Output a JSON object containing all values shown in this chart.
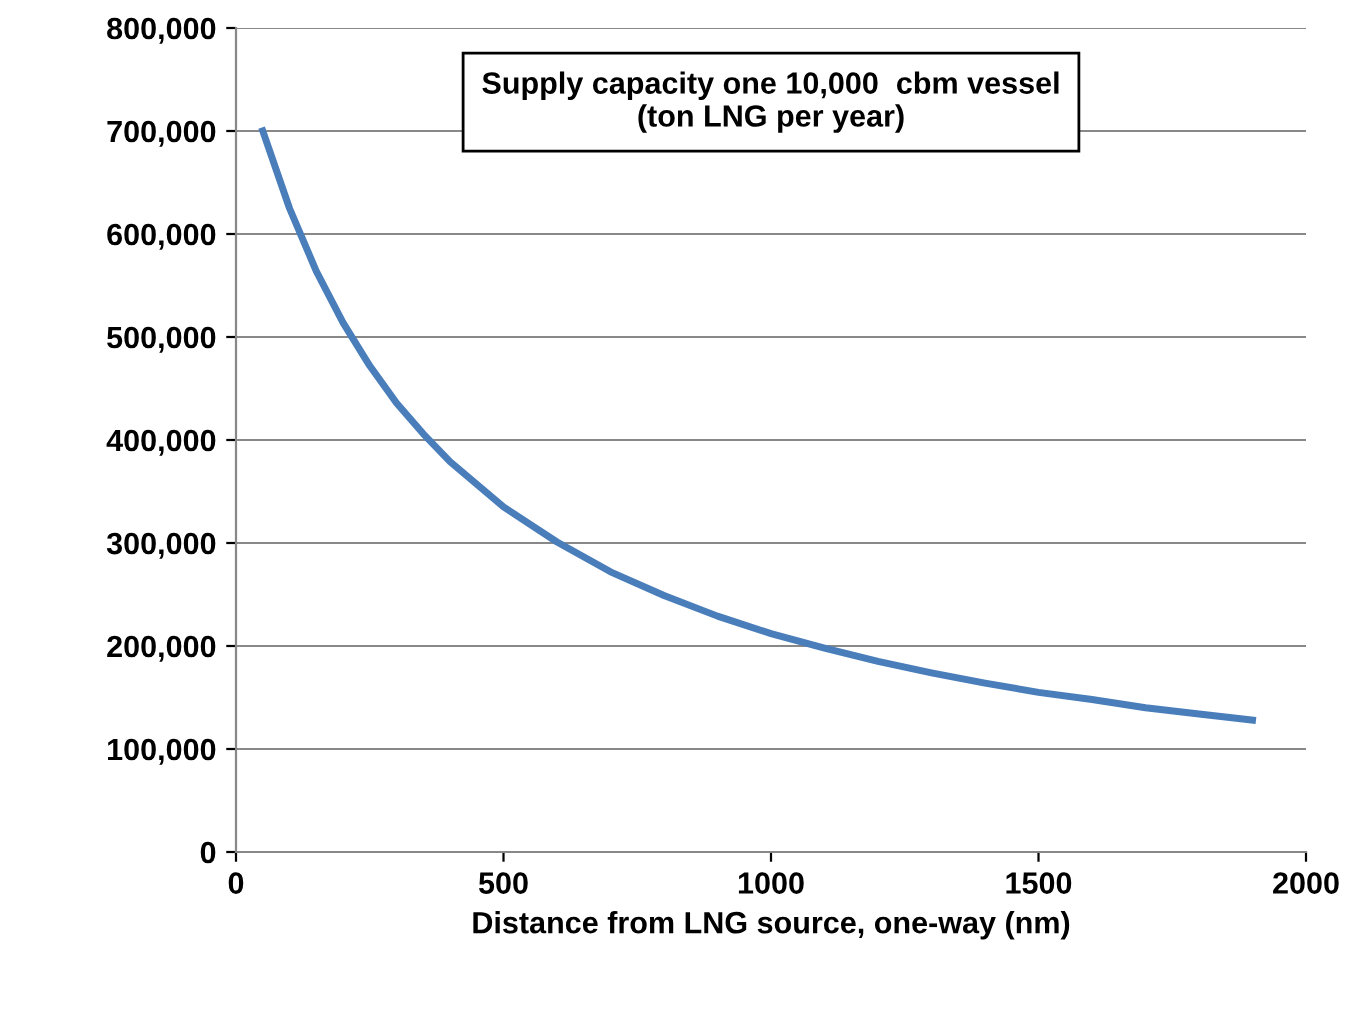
{
  "chart_data": {
    "type": "line",
    "title": "Supply capacity one 10,000  cbm vessel\n(ton LNG per year)",
    "xlabel": "Distance from LNG source, one-way (nm)",
    "series": [
      {
        "color": "#4a7ebb",
        "x": [
          50,
          100,
          150,
          200,
          250,
          300,
          350,
          400,
          500,
          600,
          700,
          800,
          900,
          1000,
          1100,
          1200,
          1300,
          1400,
          1500,
          1600,
          1700,
          1800,
          1900
        ],
        "values": [
          700000,
          625000,
          564000,
          514000,
          472000,
          436000,
          406000,
          379000,
          335000,
          301000,
          272000,
          249000,
          229000,
          212000,
          198000,
          185000,
          174000,
          164000,
          155000,
          148000,
          140000,
          134000,
          128000
        ]
      }
    ],
    "xlim": [
      0,
      2000
    ],
    "xticks": [
      0,
      500,
      1000,
      1500,
      2000
    ],
    "ylim": [
      0,
      800000
    ],
    "yticks": [
      {
        "value": 0,
        "label": "0"
      },
      {
        "value": 100000,
        "label": "100,000"
      },
      {
        "value": 200000,
        "label": "200,000"
      },
      {
        "value": 300000,
        "label": "300,000"
      },
      {
        "value": 400000,
        "label": "400,000"
      },
      {
        "value": 500000,
        "label": "500,000"
      },
      {
        "value": 600000,
        "label": "600,000"
      },
      {
        "value": 700000,
        "label": "700,000"
      },
      {
        "value": 800000,
        "label": "800,000"
      }
    ],
    "grid": "y",
    "marker": "none",
    "line_style": "solid"
  }
}
